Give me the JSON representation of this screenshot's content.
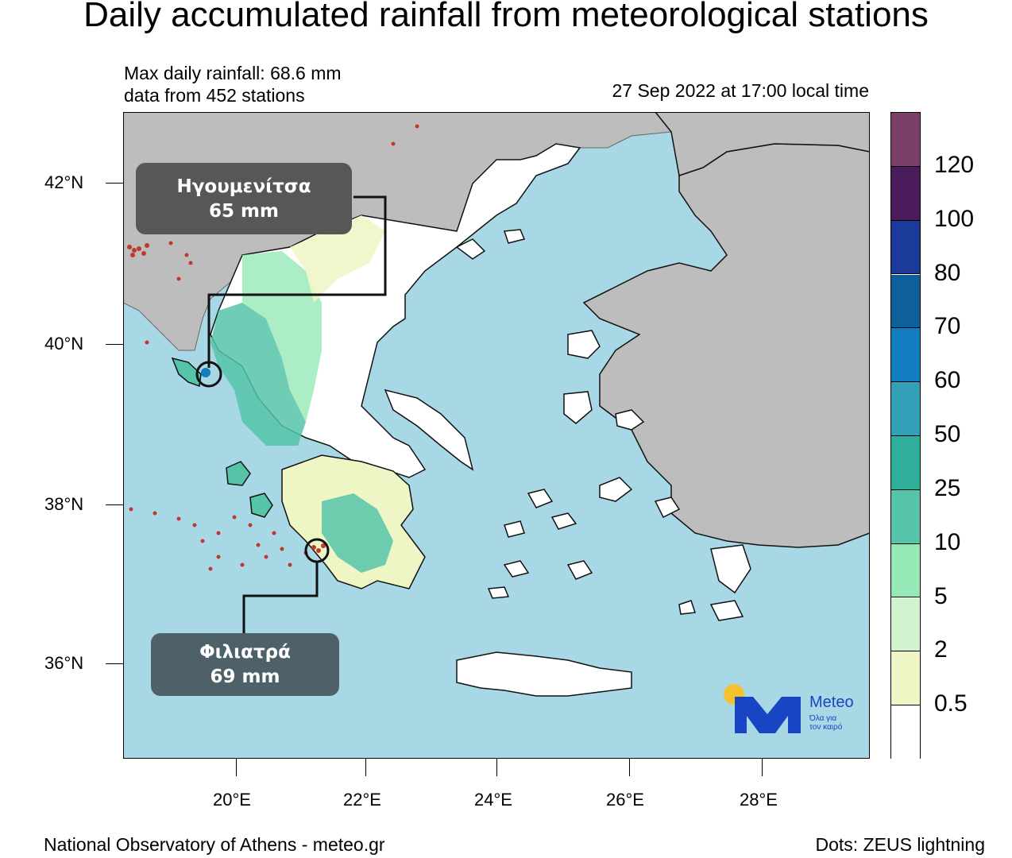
{
  "title": "Daily accumulated rainfall from meteorological stations",
  "info": {
    "max_rainfall": "Max daily rainfall: 68.6 mm",
    "stations": "data from 452 stations",
    "timestamp": "27 Sep 2022 at 17:00 local time"
  },
  "axes": {
    "lat_labels": [
      "42°N",
      "40°N",
      "38°N",
      "36°N"
    ],
    "lon_labels": [
      "20°E",
      "22°E",
      "24°E",
      "26°E",
      "28°E"
    ]
  },
  "legend": {
    "labels": [
      "120",
      "100",
      "80",
      "70",
      "60",
      "50",
      "25",
      "10",
      "5",
      "2",
      "0.5"
    ],
    "colors": [
      "#7b3f68",
      "#4a1c5c",
      "#1c3a9a",
      "#0e609a",
      "#127ec0",
      "#34a0b8",
      "#2fae9b",
      "#56c4a8",
      "#96e8b7",
      "#d1f4cf",
      "#eef6c6",
      "#ffffff"
    ]
  },
  "callouts": [
    {
      "name": "Ηγουμενίτσα",
      "value": "65 mm",
      "color": "#575757"
    },
    {
      "name": "Φιλιατρά",
      "value": "69 mm",
      "color": "#4e6168"
    }
  ],
  "logo": {
    "name": "Meteo",
    "tagline_line1": "Όλα για",
    "tagline_line2": "τον καιρό"
  },
  "footer": {
    "left": "National Observatory of Athens - meteo.gr",
    "right": "Dots: ZEUS lightning"
  },
  "colors": {
    "sea": "#a8d8e6",
    "land_other": "#bdbdbd",
    "lightning": "#c0392b",
    "brand": "#1745c4",
    "sun": "#f5c330"
  }
}
